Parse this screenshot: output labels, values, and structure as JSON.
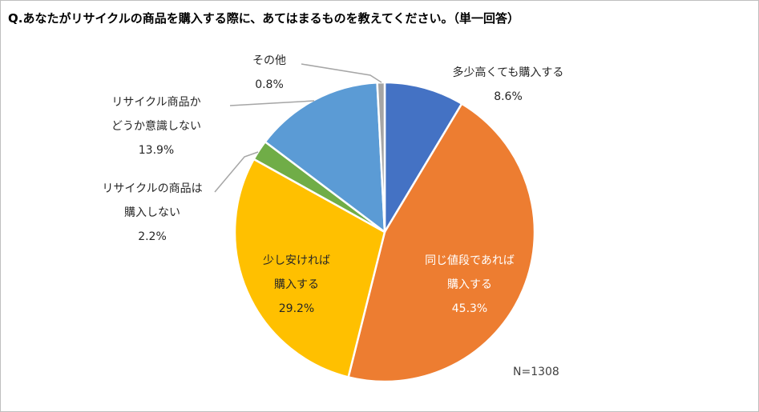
{
  "title": "Q.あなたがリサイクルの商品を購入する際に、あてはまるものを教えてください。（単一回答）",
  "note": "N=1308",
  "chart_data": {
    "type": "pie",
    "title": "Q.あなたがリサイクルの商品を購入する際に、あてはまるものを教えてください。（単一回答）",
    "start_angle_deg": 0,
    "direction": "clockwise",
    "slices": [
      {
        "label_lines": [
          "多少高くても購入する"
        ],
        "value": 8.6,
        "value_label": "8.6%",
        "color": "#4472c4"
      },
      {
        "label_lines": [
          "同じ値段であれば",
          "購入する"
        ],
        "value": 45.3,
        "value_label": "45.3%",
        "color": "#ed7d31"
      },
      {
        "label_lines": [
          "少し安ければ",
          "購入する"
        ],
        "value": 29.2,
        "value_label": "29.2%",
        "color": "#ffc000"
      },
      {
        "label_lines": [
          "リサイクルの商品は",
          "購入しない"
        ],
        "value": 2.2,
        "value_label": "2.2%",
        "color": "#70ad47"
      },
      {
        "label_lines": [
          "リサイクル商品か",
          "どうか意識しない"
        ],
        "value": 13.9,
        "value_label": "13.9%",
        "color": "#5b9bd5"
      },
      {
        "label_lines": [
          "その他"
        ],
        "value": 0.8,
        "value_label": "0.8%",
        "color": "#a5a5a5"
      }
    ]
  }
}
